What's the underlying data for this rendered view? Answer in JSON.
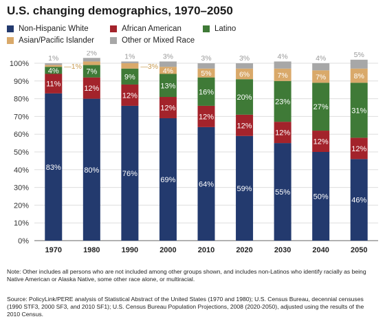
{
  "title": "U.S. changing demographics, 1970–2050",
  "legend": [
    {
      "label": "Non-Hispanic White",
      "color": "#233a6e"
    },
    {
      "label": "African American",
      "color": "#a3232b"
    },
    {
      "label": "Latino",
      "color": "#3f7a37"
    },
    {
      "label": "Asian/Pacific Islander",
      "color": "#d9a96a"
    },
    {
      "label": "Other or Mixed Race",
      "color": "#a7a7a7"
    }
  ],
  "note": "Note: Other includes all persons who are not included among other groups shown, and includes non-Latinos who identify racially as being Native American or Alaska Native, some other race alone, or multiracial.",
  "source": "Source: PolicyLink/PERE analysis of Statistical Abstract of the United States (1970 and 1980); U.S. Census Bureau, decennial censuses (1990 STF3, 2000 SF3, and 2010 SF1); U.S. Census Bureau Population Projections, 2008 (2020-2050), adjusted using the results of the 2010 Census.",
  "chart_data": {
    "type": "bar",
    "stacked": true,
    "categories": [
      "1970",
      "1980",
      "1990",
      "2000",
      "2010",
      "2020",
      "2030",
      "2040",
      "2050"
    ],
    "ylim": [
      0,
      100
    ],
    "yticks": [
      "0%",
      "10%",
      "20%",
      "30%",
      "40%",
      "50%",
      "60%",
      "70%",
      "80%",
      "90%",
      "100%"
    ],
    "grid": true,
    "legend_position": "top",
    "series": [
      {
        "name": "Non-Hispanic White",
        "color": "#233a6e",
        "values": [
          83,
          80,
          76,
          69,
          64,
          59,
          55,
          50,
          46
        ],
        "labels": [
          "83%",
          "80%",
          "76%",
          "69%",
          "64%",
          "59%",
          "55%",
          "50%",
          "46%"
        ]
      },
      {
        "name": "African American",
        "color": "#a3232b",
        "values": [
          11,
          12,
          12,
          12,
          12,
          12,
          12,
          12,
          12
        ],
        "labels": [
          "11%",
          "12%",
          "12%",
          "12%",
          "12%",
          "12%",
          "12%",
          "12%",
          "12%"
        ]
      },
      {
        "name": "Latino",
        "color": "#3f7a37",
        "values": [
          4,
          7,
          9,
          13,
          16,
          20,
          23,
          27,
          31
        ],
        "labels": [
          "4%",
          "7%",
          "9%",
          "13%",
          "16%",
          "20%",
          "23%",
          "27%",
          "31%"
        ]
      },
      {
        "name": "Asian/Pacific Islander",
        "color": "#d9a96a",
        "values": [
          1,
          2,
          3,
          4,
          5,
          6,
          7,
          7,
          8
        ],
        "labels": [
          "1%",
          "",
          "3%",
          "4%",
          "5%",
          "6%",
          "7%",
          "7%",
          "8%"
        ]
      },
      {
        "name": "Other or Mixed Race",
        "color": "#a7a7a7",
        "values": [
          1,
          2,
          1,
          3,
          3,
          3,
          4,
          4,
          5
        ],
        "labels": [
          "1%",
          "2%",
          "1%",
          "3%",
          "3%",
          "3%",
          "4%",
          "4%",
          "5%"
        ]
      }
    ]
  }
}
